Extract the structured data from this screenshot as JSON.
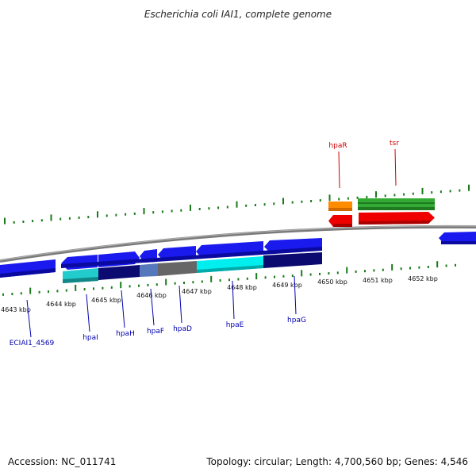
{
  "header": {
    "title": "Escherichia coli IAI1, complete genome"
  },
  "footer": {
    "accession": "Accession: NC_011741",
    "summary": "Topology: circular; Length: 4,700,560 bp; Genes: 4,546"
  },
  "colors": {
    "backbone": "#888888",
    "tick": "#1a7a1a",
    "forward_gene": "#1a1aee",
    "orange_gene": "#ff8c00",
    "green_gene": "#33aa33",
    "red_gene": "#ee0000",
    "top_label": "#cc0000",
    "bottom_label": "#0000b0"
  },
  "scale": {
    "ticks": [
      {
        "label": "4643 kbp"
      },
      {
        "label": "4644 kbp"
      },
      {
        "label": "4645 kbp"
      },
      {
        "label": "4646 kbp"
      },
      {
        "label": "4647 kbp"
      },
      {
        "label": "4648 kbp"
      },
      {
        "label": "4649 kbp"
      },
      {
        "label": "4650 kbp"
      },
      {
        "label": "4651 kbp"
      },
      {
        "label": "4652 kbp"
      }
    ]
  },
  "genes": {
    "top_labels": [
      {
        "name": "hpaR"
      },
      {
        "name": "tsr"
      }
    ],
    "bottom_labels": [
      {
        "name": "ECIAI1_4569"
      },
      {
        "name": "hpaI"
      },
      {
        "name": "hpaH"
      },
      {
        "name": "hpaF"
      },
      {
        "name": "hpaD"
      },
      {
        "name": "hpaE"
      },
      {
        "name": "hpaG"
      }
    ]
  }
}
